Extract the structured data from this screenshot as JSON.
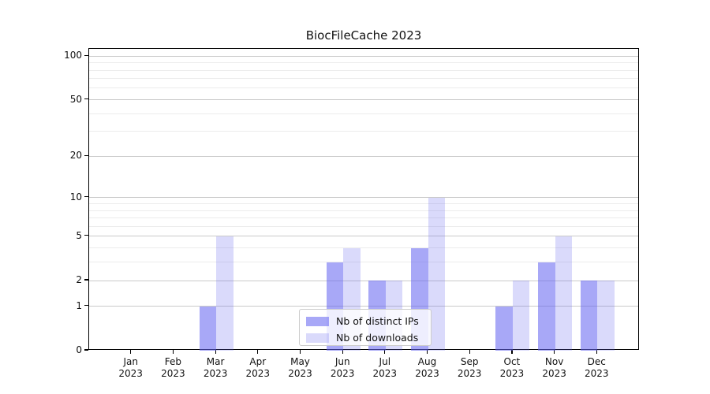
{
  "chart_data": {
    "type": "bar",
    "title": "BiocFileCache 2023",
    "categories": [
      "Jan",
      "Feb",
      "Mar",
      "Apr",
      "May",
      "Jun",
      "Jul",
      "Aug",
      "Sep",
      "Oct",
      "Nov",
      "Dec"
    ],
    "year": "2023",
    "series": [
      {
        "name": "Nb of distinct IPs",
        "color": "rgba(99,99,240,0.56)",
        "values": [
          0,
          0,
          1,
          0,
          0,
          3,
          2,
          4,
          0,
          1,
          3,
          2
        ]
      },
      {
        "name": "Nb of downloads",
        "color": "rgba(99,99,240,0.24)",
        "values": [
          0,
          0,
          5,
          0,
          0,
          4,
          2,
          10,
          0,
          2,
          5,
          2
        ]
      }
    ],
    "xlabel": "",
    "ylabel": "",
    "yscale": "log1p",
    "ylim": [
      0,
      112
    ],
    "y_major_ticks": [
      0,
      1,
      2,
      5,
      10,
      20,
      50,
      100
    ],
    "y_minor_ticks": [
      3,
      4,
      6,
      7,
      8,
      9,
      30,
      40,
      60,
      70,
      80,
      90
    ],
    "grid": true,
    "legend_position": "lower center"
  },
  "style": {
    "grid_major_color": "#c9c9c9",
    "grid_minor_color": "#ececec",
    "axis_color": "#000000",
    "background_color": "#ffffff"
  }
}
